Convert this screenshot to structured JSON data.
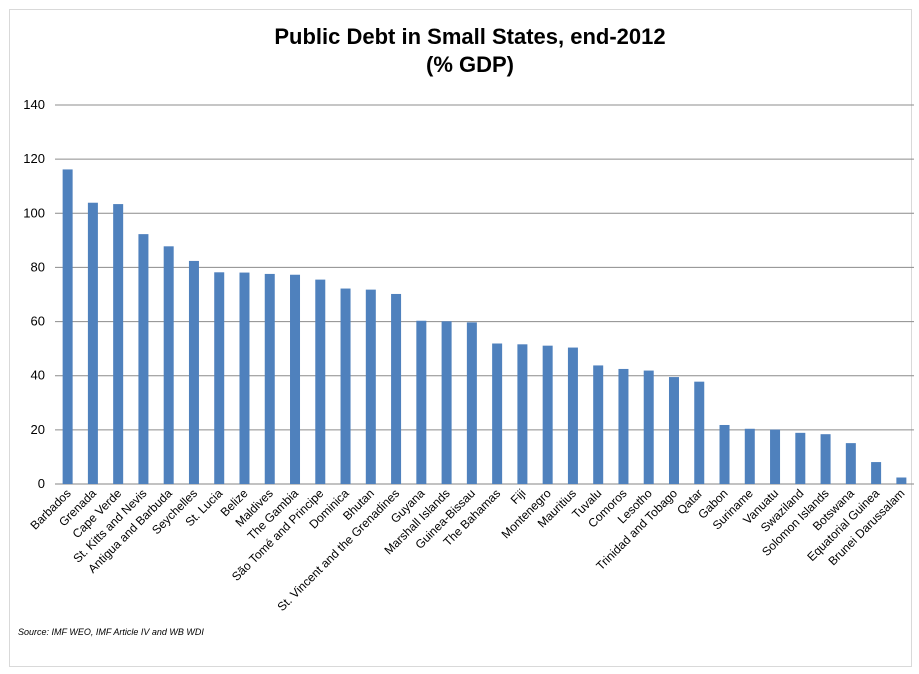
{
  "chart_data": {
    "type": "bar",
    "title": "Public Debt in Small States, end-2012",
    "subtitle": "(% GDP)",
    "xlabel": "",
    "ylabel": "",
    "ylim": [
      0,
      140
    ],
    "yticks": [
      0,
      20,
      40,
      60,
      80,
      100,
      120,
      140
    ],
    "grid": true,
    "legend": "none",
    "bar_color": "#4f81bd",
    "categories": [
      "Barbados",
      "Grenada",
      "Cape Verde",
      "St. Kitts and Nevis",
      "Antigua and Barbuda",
      "Seychelles",
      "St. Lucia",
      "Belize",
      "Maldives",
      "The Gambia",
      "São Tomé and Principe",
      "Dominica",
      "Bhutan",
      "St. Vincent and the Grenadines",
      "Guyana",
      "Marshall Islands",
      "Guinea-Bissau",
      "The Bahamas",
      "Fiji",
      "Montenegro",
      "Mauritius",
      "Tuvalu",
      "Comoros",
      "Lesotho",
      "Trinidad and Tobago",
      "Qatar",
      "Gabon",
      "Suriname",
      "Vanuatu",
      "Swaziland",
      "Solomon Islands",
      "Botswana",
      "Equatorial Guinea",
      "Brunei Darussalam"
    ],
    "values": [
      116.2,
      103.9,
      103.4,
      92.3,
      87.8,
      82.4,
      78.2,
      78.1,
      77.6,
      77.3,
      75.5,
      72.2,
      71.8,
      70.2,
      60.3,
      60.1,
      59.7,
      51.9,
      51.6,
      51.1,
      50.4,
      43.8,
      42.5,
      41.9,
      39.5,
      37.8,
      21.8,
      20.4,
      20.1,
      18.9,
      18.4,
      15.1,
      8.1,
      2.4
    ]
  },
  "source": "Source:  IMF WEO, IMF Article IV and WB WDI"
}
